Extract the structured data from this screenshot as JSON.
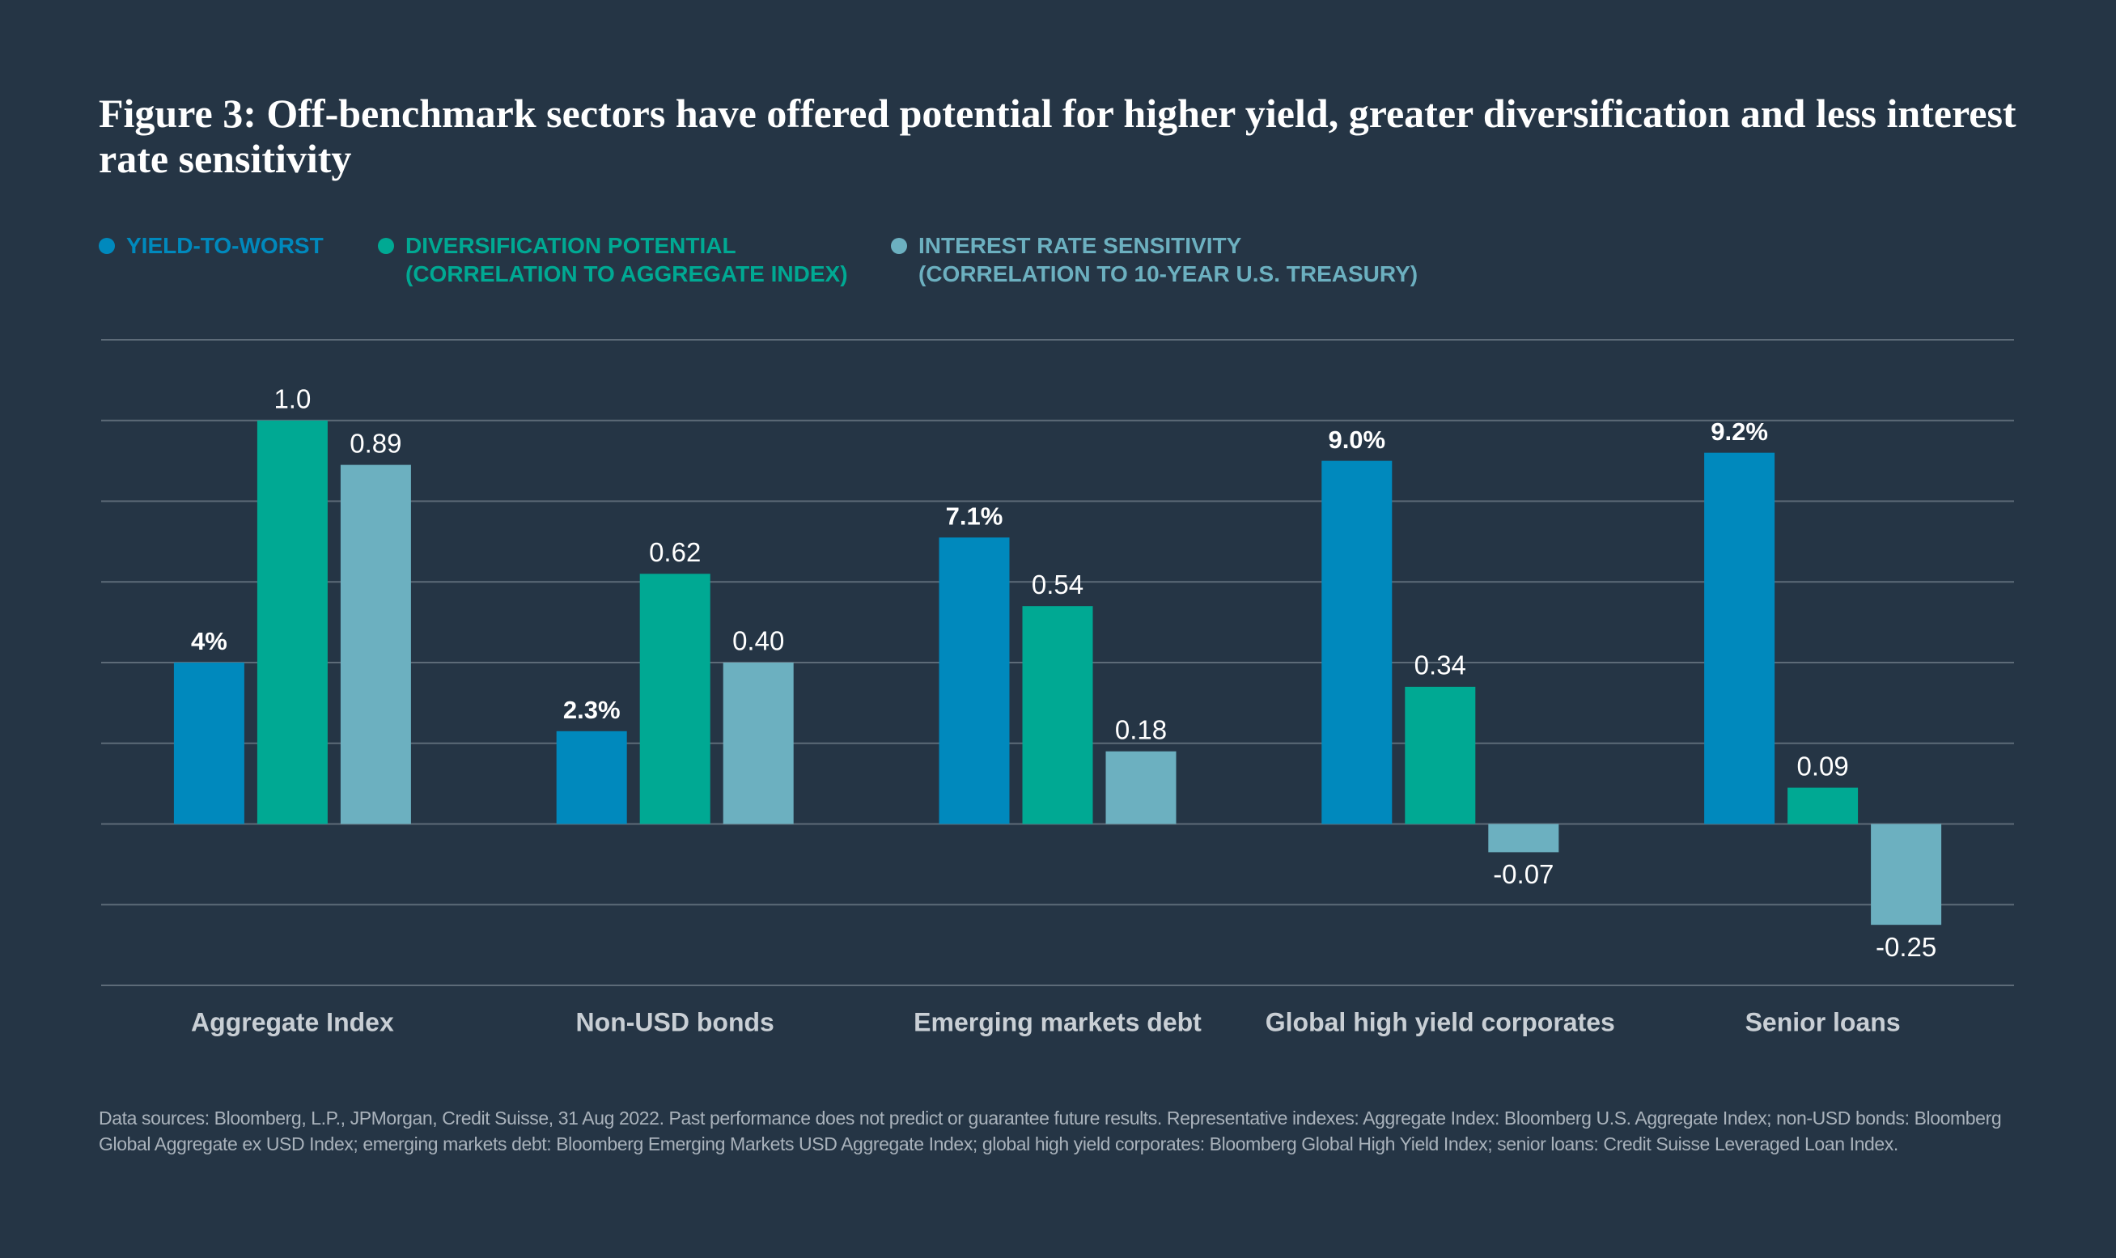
{
  "chart_data": {
    "type": "bar",
    "title": "Figure 3: Off-benchmark sectors have offered potential for higher yield, greater diversification and less interest rate sensitivity",
    "categories": [
      "Aggregate Index",
      "Non-USD bonds",
      "Emerging markets debt",
      "Global high yield corporates",
      "Senior loans"
    ],
    "series": [
      {
        "name": "YIELD-TO-WORST",
        "color": "#0089bd",
        "axis": "y2",
        "values": [
          4,
          2.3,
          7.1,
          9.0,
          9.2
        ],
        "value_labels": [
          "4%",
          "2.3%",
          "7.1%",
          "9.0%",
          "9.2%"
        ]
      },
      {
        "name": "DIVERSIFICATION POTENTIAL\n(CORRELATION TO AGGREGATE INDEX)",
        "color": "#00a993",
        "values": [
          1.0,
          0.62,
          0.54,
          0.34,
          0.09
        ],
        "value_labels": [
          "1.0",
          "0.62",
          "0.54",
          "0.34",
          "0.09"
        ]
      },
      {
        "name": "INTEREST RATE SENSITIVITY\n(CORRELATION TO 10-YEAR U.S. TREASURY)",
        "color": "#6cb0c0",
        "values": [
          0.89,
          0.4,
          0.18,
          -0.07,
          -0.25
        ],
        "value_labels": [
          "0.89",
          "0.40",
          "0.18",
          "-0.07",
          "-0.25"
        ]
      }
    ],
    "ylim": [
      -0.4,
      1.2
    ],
    "yticks": [
      -0.4,
      -0.2,
      0,
      0.2,
      0.4,
      0.6,
      0.8,
      1.0,
      1.2
    ],
    "y2lim": [
      -4,
      12
    ],
    "grid": true,
    "footnote": "Data sources: Bloomberg, L.P., JPMorgan, Credit Suisse, 31 Aug 2022. Past performance does not predict or guarantee future results. Representative indexes: Aggregate Index: Bloomberg U.S. Aggregate Index; non-USD bonds: Bloomberg Global Aggregate ex USD Index; emerging markets debt: Bloomberg Emerging Markets USD Aggregate Index; global high yield corporates: Bloomberg Global High Yield Index; senior loans: Credit Suisse Leveraged Loan Index."
  }
}
